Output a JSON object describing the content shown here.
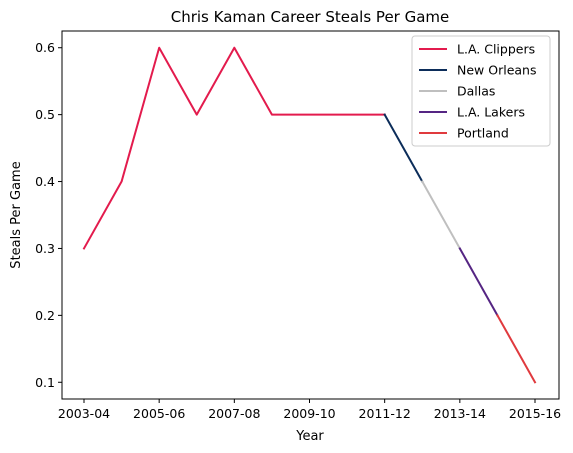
{
  "chart_data": {
    "type": "line",
    "title": "Chris Kaman Career Steals Per Game",
    "xlabel": "Year",
    "ylabel": "Steals Per Game",
    "x": [
      "2003-04",
      "2004-05",
      "2005-06",
      "2006-07",
      "2007-08",
      "2008-09",
      "2009-10",
      "2010-11",
      "2011-12",
      "2012-13",
      "2013-14",
      "2014-15",
      "2015-16"
    ],
    "x_tick_labels": [
      "2003-04",
      "2005-06",
      "2007-08",
      "2009-10",
      "2011-12",
      "2013-14",
      "2015-16"
    ],
    "y_ticks": [
      0.1,
      0.2,
      0.3,
      0.4,
      0.5,
      0.6
    ],
    "ylim": [
      0.075,
      0.625
    ],
    "grid": false,
    "legend_position": "top-right",
    "series": [
      {
        "name": "L.A. Clippers",
        "color": "#e31b4d",
        "x": [
          "2003-04",
          "2004-05",
          "2005-06",
          "2006-07",
          "2007-08",
          "2008-09",
          "2009-10",
          "2010-11",
          "2011-12"
        ],
        "values": [
          0.3,
          0.4,
          0.6,
          0.5,
          0.6,
          0.5,
          0.5,
          0.5,
          0.5
        ]
      },
      {
        "name": "New Orleans",
        "color": "#0c2d5a",
        "x": [
          "2011-12",
          "2012-13"
        ],
        "values": [
          0.5,
          0.4
        ]
      },
      {
        "name": "Dallas",
        "color": "#bfbfbf",
        "x": [
          "2012-13",
          "2013-14"
        ],
        "values": [
          0.4,
          0.3
        ]
      },
      {
        "name": "L.A. Lakers",
        "color": "#552583",
        "x": [
          "2013-14",
          "2014-15"
        ],
        "values": [
          0.3,
          0.2
        ]
      },
      {
        "name": "Portland",
        "color": "#e03a3e",
        "x": [
          "2014-15",
          "2015-16"
        ],
        "values": [
          0.2,
          0.1
        ]
      }
    ]
  }
}
